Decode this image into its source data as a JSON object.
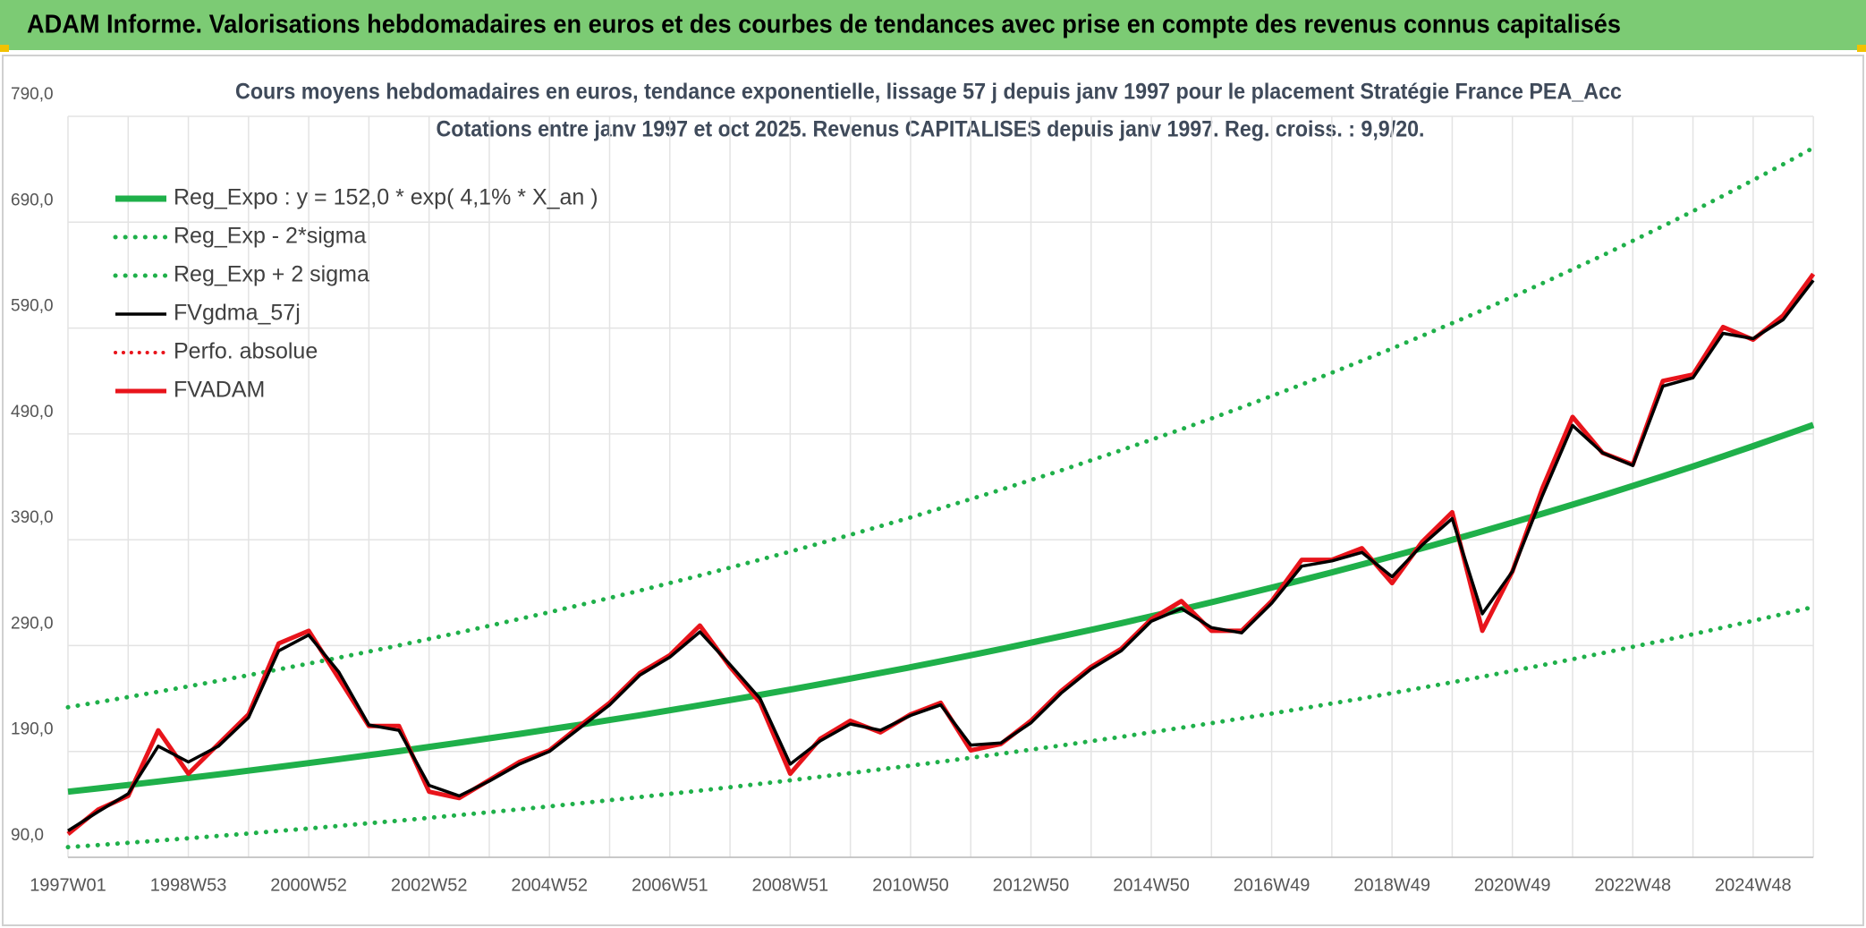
{
  "header": {
    "title": "ADAM Informe. Valorisations hebdomadaires en euros et des courbes de tendances avec prise en compte des revenus connus capitalisés"
  },
  "chart_data": {
    "type": "line",
    "title": "Cours moyens hebdomadaires en euros, tendance exponentielle, lissage 57 j depuis janv 1997 pour le placement Stratégie France PEA_Acc",
    "subtitle": "Cotations entre janv 1997 et oct 2025. Revenus CAPITALISES depuis janv 1997. Reg. croiss. : 9,9/20.",
    "categories": [
      "1997W01",
      null,
      null,
      null,
      "1998W53",
      null,
      null,
      null,
      "2000W52",
      null,
      null,
      null,
      "2002W52",
      null,
      null,
      null,
      "2004W52",
      null,
      null,
      null,
      "2006W51",
      null,
      null,
      null,
      "2008W51",
      null,
      null,
      null,
      "2010W50",
      null,
      null,
      null,
      "2012W50",
      null,
      null,
      null,
      "2014W50",
      null,
      null,
      null,
      "2016W49",
      null,
      null,
      null,
      "2018W49",
      null,
      null,
      null,
      "2020W49",
      null,
      null,
      null,
      "2022W48",
      null,
      null,
      null,
      "2024W48",
      null,
      null
    ],
    "ylim": [
      90,
      790
    ],
    "yticks": [
      {
        "value": 90,
        "label": "90,0"
      },
      {
        "value": 190,
        "label": "190,0"
      },
      {
        "value": 290,
        "label": "290,0"
      },
      {
        "value": 390,
        "label": "390,0"
      },
      {
        "value": 490,
        "label": "490,0"
      },
      {
        "value": 590,
        "label": "590,0"
      },
      {
        "value": 690,
        "label": "690,0"
      },
      {
        "value": 790,
        "label": "790,0"
      }
    ],
    "grid": true,
    "legend": "upper-left",
    "series": [
      {
        "name": "Reg_Expo : y = 152,0 * exp( 4,1% *  X_an )",
        "color": "#1fb04a",
        "style": "solid",
        "values": [
          152.0,
          155.1,
          158.3,
          161.6,
          164.9,
          168.3,
          171.8,
          175.4,
          179.0,
          182.7,
          186.5,
          190.3,
          194.3,
          198.3,
          202.4,
          206.6,
          210.9,
          215.2,
          219.7,
          224.2,
          228.9,
          233.6,
          238.5,
          243.4,
          248.4,
          253.6,
          258.8,
          264.2,
          269.6,
          275.2,
          280.9,
          286.7,
          292.7,
          298.7,
          304.9,
          311.2,
          317.7,
          324.2,
          330.9,
          337.8,
          344.8,
          351.9,
          359.2,
          366.6,
          374.2,
          382.0,
          389.9,
          397.9,
          406.2,
          414.6,
          423.2,
          431.9,
          440.9,
          450.0,
          459.3,
          468.8,
          478.5,
          488.4,
          498.5
        ]
      },
      {
        "name": "Reg_Exp - 2*sigma",
        "color": "#1fb04a",
        "style": "dotted",
        "values": [
          99.6,
          101.6,
          103.7,
          105.8,
          108.0,
          110.2,
          112.5,
          114.9,
          117.2,
          119.7,
          122.2,
          124.6,
          127.3,
          129.9,
          132.6,
          135.3,
          138.1,
          141.0,
          143.9,
          146.9,
          149.9,
          153.0,
          156.2,
          159.4,
          162.7,
          166.1,
          169.5,
          173.1,
          176.6,
          180.3,
          184.0,
          187.8,
          191.7,
          195.6,
          199.7,
          203.8,
          208.1,
          212.4,
          216.7,
          221.3,
          225.8,
          230.5,
          235.3,
          240.1,
          245.1,
          250.2,
          255.4,
          260.6,
          266.1,
          271.6,
          277.2,
          282.9,
          288.8,
          294.8,
          300.8,
          307.1,
          313.4,
          319.9,
          326.5
        ]
      },
      {
        "name": "Reg_Exp + 2 sigma",
        "color": "#1fb04a",
        "style": "dotted",
        "values": [
          231.8,
          236.5,
          241.4,
          246.4,
          251.5,
          256.7,
          262.0,
          267.5,
          273.0,
          278.6,
          284.4,
          290.2,
          296.3,
          302.4,
          308.7,
          315.1,
          321.6,
          328.2,
          335.0,
          341.9,
          349.1,
          356.2,
          363.7,
          371.2,
          378.8,
          386.7,
          394.7,
          402.9,
          411.1,
          419.7,
          428.4,
          437.2,
          446.4,
          455.5,
          465.0,
          474.6,
          484.5,
          494.4,
          504.6,
          515.1,
          525.8,
          536.6,
          547.8,
          559.1,
          570.7,
          582.6,
          594.6,
          606.8,
          619.5,
          632.3,
          645.4,
          658.6,
          672.4,
          686.3,
          700.4,
          714.9,
          729.7,
          744.8,
          760.2
        ]
      },
      {
        "name": "FVgdma_57j",
        "color": "#000000",
        "style": "solid",
        "values": [
          115,
          133,
          150,
          195,
          180,
          195,
          222,
          285,
          300,
          265,
          215,
          210,
          158,
          148,
          162,
          178,
          190,
          212,
          234,
          262,
          279,
          303,
          272,
          240,
          178,
          200,
          216,
          210,
          224,
          234,
          196,
          198,
          217,
          245,
          268,
          285,
          313,
          325,
          307,
          302,
          330,
          365,
          370,
          378,
          355,
          385,
          410,
          320,
          360,
          432,
          498,
          472,
          460,
          535,
          543,
          585,
          580,
          598,
          635
        ]
      },
      {
        "name": "Perfo. absolue",
        "color": "#e8141b",
        "style": "dotted",
        "values": [
          null,
          null,
          null,
          null,
          null,
          null,
          null,
          null,
          null,
          null,
          null,
          null,
          null,
          null,
          null,
          null,
          null,
          null,
          null,
          null,
          null,
          null,
          null,
          null,
          null,
          null,
          null,
          null,
          null,
          null,
          null,
          null,
          null,
          null,
          null,
          null,
          null,
          null,
          null,
          null,
          null,
          null,
          null,
          null,
          null,
          null,
          null,
          null,
          null,
          null,
          null,
          null,
          null,
          null,
          null,
          null,
          null,
          null,
          null
        ]
      },
      {
        "name": "FVADAM",
        "color": "#e8141b",
        "style": "solid",
        "values": [
          112,
          135,
          148,
          210,
          169,
          197,
          225,
          292,
          304,
          259,
          214,
          214,
          152,
          146,
          163,
          180,
          191,
          214,
          236,
          264,
          281,
          309,
          270,
          236,
          169,
          202,
          219,
          208,
          225,
          236,
          191,
          197,
          219,
          247,
          270,
          287,
          315,
          332,
          304,
          304,
          332,
          371,
          371,
          382,
          349,
          388,
          416,
          304,
          360,
          439,
          506,
          472,
          461,
          540,
          546,
          591,
          579,
          602,
          641
        ]
      }
    ]
  }
}
